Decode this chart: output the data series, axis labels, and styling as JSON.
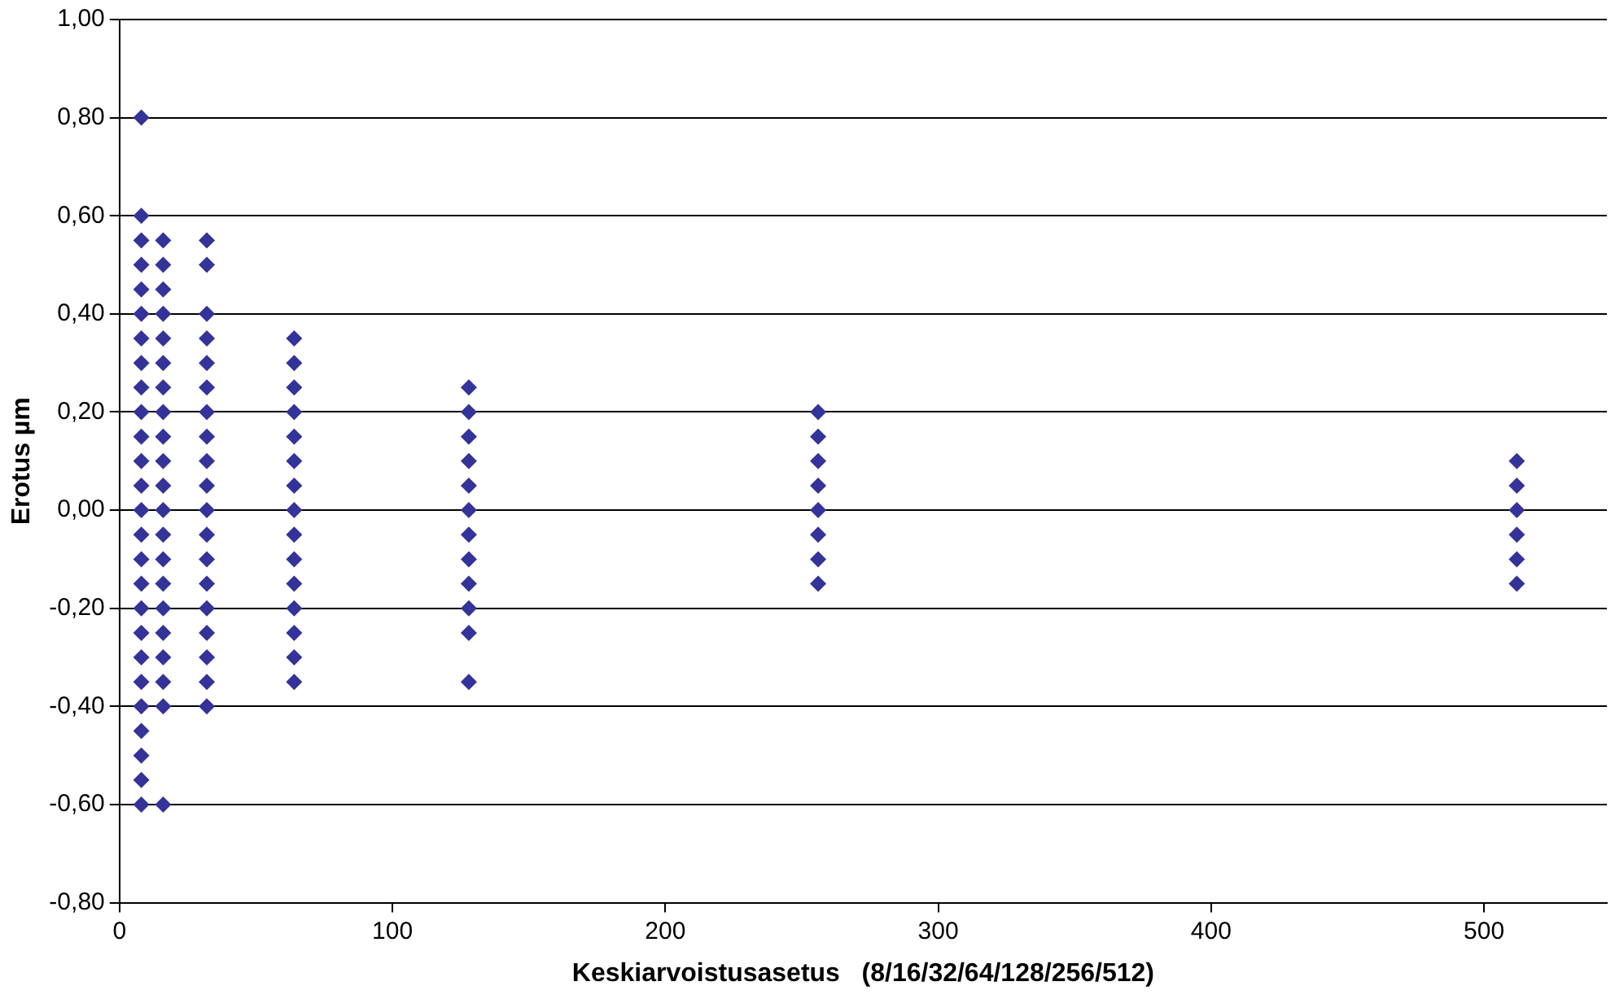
{
  "chart_data": {
    "type": "scatter",
    "xlabel": "Keskiarvoistusasetus   (8/16/32/64/128/256/512)",
    "ylabel": "Erotus µm",
    "marker": "diamond",
    "grid": "y",
    "xlim": [
      0,
      545
    ],
    "xticks": [
      0,
      100,
      200,
      300,
      400,
      500
    ],
    "ylim": [
      -0.8,
      1.0
    ],
    "yticks": [
      {
        "value": -0.8,
        "label": "-0,80"
      },
      {
        "value": -0.6,
        "label": "-0,60"
      },
      {
        "value": -0.4,
        "label": "-0,40"
      },
      {
        "value": -0.2,
        "label": "-0,20"
      },
      {
        "value": 0,
        "label": "0,00"
      },
      {
        "value": 0.2,
        "label": "0,20"
      },
      {
        "value": 0.4,
        "label": "0,40"
      },
      {
        "value": 0.6,
        "label": "0,60"
      },
      {
        "value": 0.8,
        "label": "0,80"
      },
      {
        "value": 1.0,
        "label": "1,00"
      }
    ],
    "series": [
      {
        "color": "#333399",
        "x": [
          8,
          8,
          8,
          8,
          8,
          8,
          8,
          8,
          8,
          8,
          8,
          8,
          8,
          8,
          8,
          8,
          8,
          8,
          8,
          8,
          8,
          8,
          8,
          8,
          8,
          8,
          16,
          16,
          16,
          16,
          16,
          16,
          16,
          16,
          16,
          16,
          16,
          16,
          16,
          16,
          16,
          16,
          16,
          16,
          16,
          16,
          16,
          32,
          32,
          32,
          32,
          32,
          32,
          32,
          32,
          32,
          32,
          32,
          32,
          32,
          32,
          32,
          32,
          32,
          32,
          32,
          64,
          64,
          64,
          64,
          64,
          64,
          64,
          64,
          64,
          64,
          64,
          64,
          64,
          64,
          64,
          128,
          128,
          128,
          128,
          128,
          128,
          128,
          128,
          128,
          128,
          128,
          128,
          256,
          256,
          256,
          256,
          256,
          256,
          256,
          256,
          512,
          512,
          512,
          512,
          512,
          512
        ],
        "values": [
          0.8,
          0.6,
          0.55,
          0.5,
          0.45,
          0.4,
          0.35,
          0.3,
          0.25,
          0.2,
          0.15,
          0.1,
          0.05,
          0,
          -0.05,
          -0.1,
          -0.15,
          -0.2,
          -0.25,
          -0.3,
          -0.35,
          -0.4,
          -0.45,
          -0.5,
          -0.55,
          -0.6,
          0.55,
          0.5,
          0.45,
          0.4,
          0.35,
          0.3,
          0.25,
          0.2,
          0.15,
          0.1,
          0.05,
          0,
          -0.05,
          -0.1,
          -0.15,
          -0.2,
          -0.25,
          -0.3,
          -0.35,
          -0.4,
          -0.6,
          0.55,
          0.5,
          0.4,
          0.35,
          0.3,
          0.25,
          0.2,
          0.15,
          0.1,
          0.05,
          0,
          -0.05,
          -0.1,
          -0.15,
          -0.2,
          -0.25,
          -0.3,
          -0.35,
          -0.4,
          0.35,
          0.3,
          0.25,
          0.2,
          0.15,
          0.1,
          0.05,
          0,
          -0.05,
          -0.1,
          -0.15,
          -0.2,
          -0.25,
          -0.3,
          -0.35,
          0.25,
          0.2,
          0.15,
          0.1,
          0.05,
          0,
          -0.05,
          -0.1,
          -0.15,
          -0.2,
          -0.25,
          -0.35,
          0.2,
          0.15,
          0.1,
          0.05,
          0,
          -0.05,
          -0.1,
          -0.15,
          0.1,
          0.05,
          0,
          -0.05,
          -0.1,
          -0.15
        ]
      }
    ]
  }
}
